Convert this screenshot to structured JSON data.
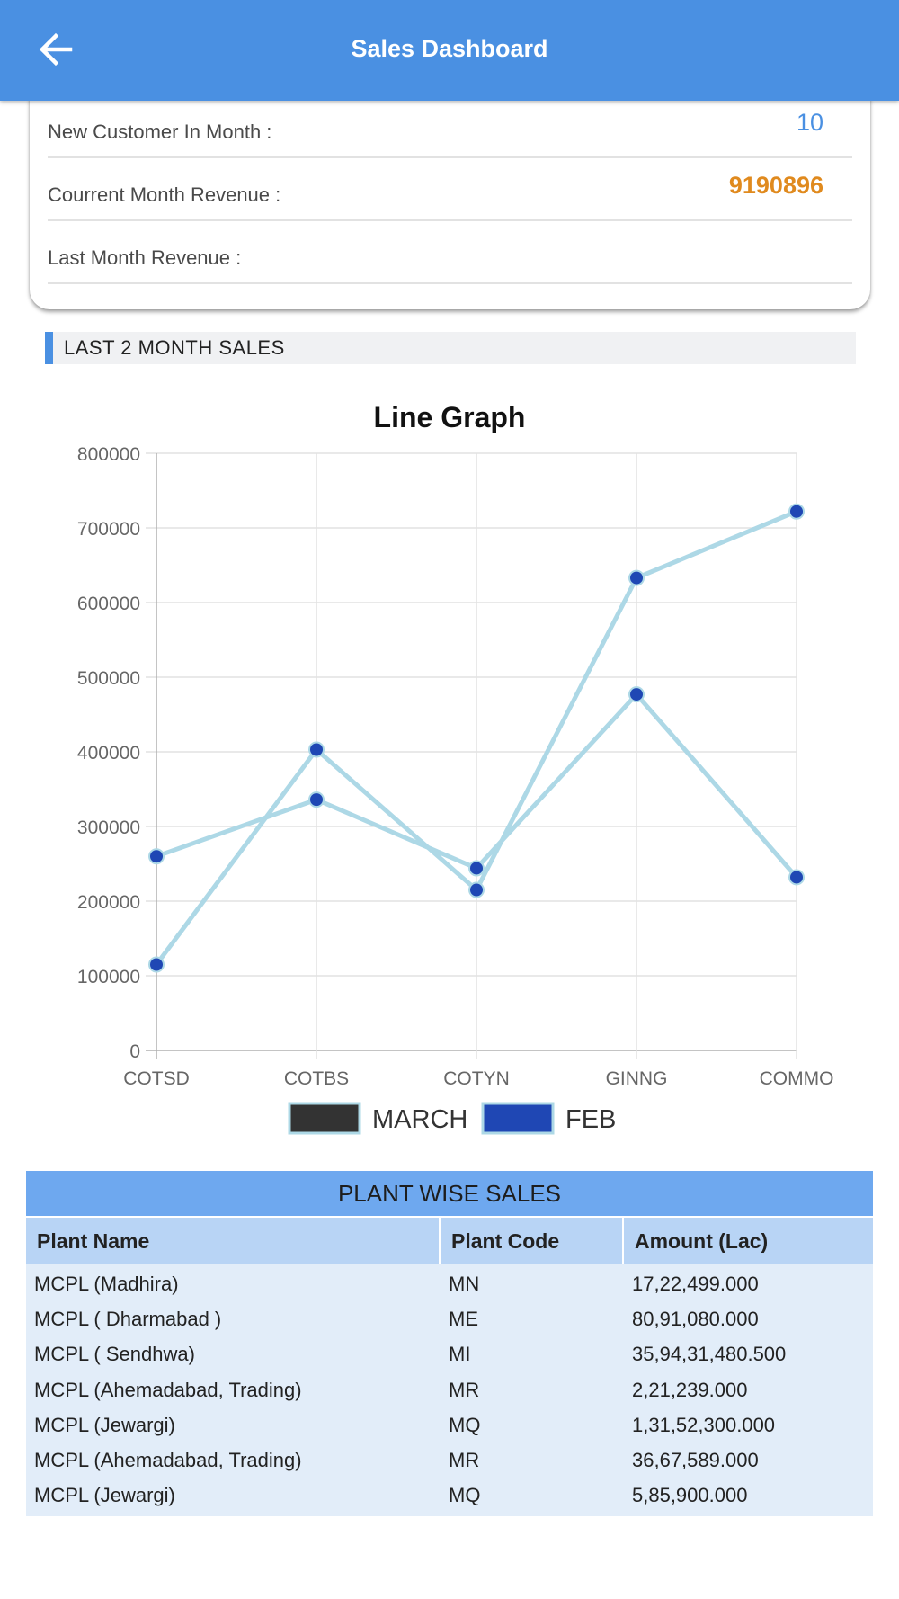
{
  "header": {
    "title": "Sales Dashboard",
    "back_icon": "arrow-left-icon"
  },
  "summary": {
    "rows": [
      {
        "label": "New Customer In Month :",
        "value": "10"
      },
      {
        "label": "Courrent Month Revenue :",
        "value": "9190896"
      },
      {
        "label": "Last Month Revenue :",
        "value": ""
      }
    ],
    "colors": {
      "customers": "#4a90e2",
      "revenue": "#e08a1e"
    }
  },
  "section": {
    "title": "LAST 2 MONTH SALES"
  },
  "chart_data": {
    "type": "line",
    "title": "Line Graph",
    "xlabel": "",
    "ylabel": "",
    "categories": [
      "COTSD",
      "COTBS",
      "COTYN",
      "GINNG",
      "COMMO"
    ],
    "ylim": [
      0,
      800000
    ],
    "yticks": [
      0,
      100000,
      200000,
      300000,
      400000,
      500000,
      600000,
      700000,
      800000
    ],
    "grid": true,
    "legend_position": "bottom",
    "line_color": "#add8e6",
    "point_color": "#1f47b4",
    "series": [
      {
        "name": "MARCH",
        "color": "#333333",
        "values": [
          260000,
          336000,
          244000,
          477000,
          232000
        ]
      },
      {
        "name": "FEB",
        "color": "#1f47b4",
        "values": [
          115000,
          403000,
          215000,
          633000,
          722000
        ]
      }
    ]
  },
  "plant_table": {
    "caption": "PLANT WISE SALES",
    "columns": [
      "Plant Name",
      "Plant Code",
      "Amount (Lac)"
    ],
    "rows": [
      [
        "MCPL (Madhira)",
        "MN",
        "17,22,499.000"
      ],
      [
        "MCPL ( Dharmabad )",
        "ME",
        "80,91,080.000"
      ],
      [
        "MCPL ( Sendhwa)",
        "MI",
        "35,94,31,480.500"
      ],
      [
        "MCPL (Ahemadabad, Trading)",
        "MR",
        "2,21,239.000"
      ],
      [
        "MCPL (Jewargi)",
        "MQ",
        "1,31,52,300.000"
      ],
      [
        "MCPL (Ahemadabad, Trading)",
        "MR",
        "36,67,589.000"
      ],
      [
        "MCPL (Jewargi)",
        "MQ",
        "5,85,900.000"
      ]
    ]
  }
}
